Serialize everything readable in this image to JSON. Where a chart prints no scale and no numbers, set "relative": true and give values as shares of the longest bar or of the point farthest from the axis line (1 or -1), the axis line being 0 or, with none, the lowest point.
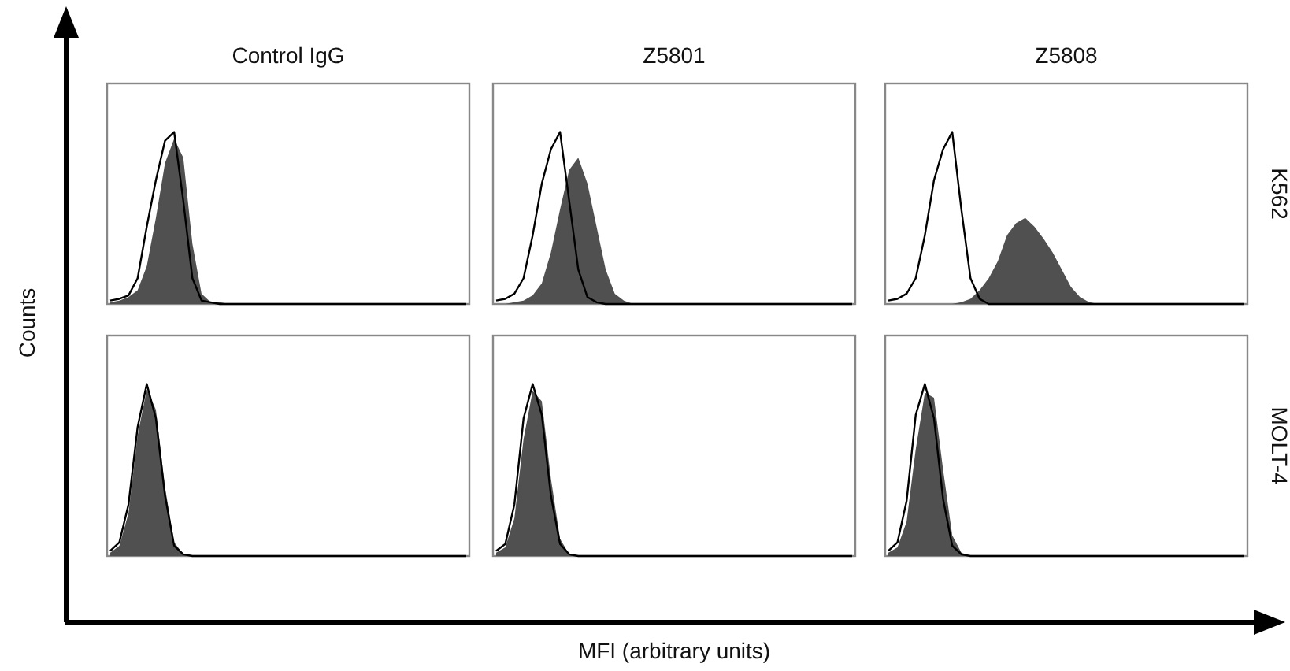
{
  "chart_data": [
    {
      "type": "area",
      "title": "Control IgG",
      "ylabel": "Counts",
      "relative": true,
      "tick_labels": false,
      "categories": [
        null,
        null,
        null,
        null,
        null,
        null,
        null,
        null,
        null,
        null,
        null,
        null,
        null,
        null,
        null,
        null,
        null,
        null,
        null,
        null,
        null,
        null,
        null,
        null,
        null,
        null,
        null,
        null,
        null,
        null,
        null,
        null,
        null,
        null,
        null,
        null,
        null,
        null,
        null,
        null
      ],
      "series": [
        {
          "type": "area",
          "color": "#505050",
          "values": [
            0.01,
            0.02,
            0.04,
            0.08,
            0.22,
            0.5,
            0.82,
            0.96,
            0.85,
            0.35,
            0.06,
            0.01,
            0.01,
            0,
            0,
            0,
            0,
            0,
            0,
            0,
            0,
            0,
            0,
            0,
            0,
            0,
            0,
            0,
            0,
            0,
            0,
            0,
            0,
            0,
            0,
            0,
            0,
            0,
            0,
            0
          ]
        },
        {
          "type": "line",
          "color": "#000000",
          "values": [
            0.02,
            0.03,
            0.05,
            0.15,
            0.45,
            0.72,
            0.95,
            1,
            0.6,
            0.15,
            0.02,
            0.01,
            0,
            0,
            0,
            0,
            0,
            0,
            0,
            0,
            0,
            0,
            0,
            0,
            0,
            0,
            0,
            0,
            0,
            0,
            0,
            0,
            0,
            0,
            0,
            0,
            0,
            0,
            0,
            0
          ]
        }
      ]
    },
    {
      "type": "area",
      "title": "Z5801",
      "relative": true,
      "tick_labels": false,
      "categories": [
        null,
        null,
        null,
        null,
        null,
        null,
        null,
        null,
        null,
        null,
        null,
        null,
        null,
        null,
        null,
        null,
        null,
        null,
        null,
        null,
        null,
        null,
        null,
        null,
        null,
        null,
        null,
        null,
        null,
        null,
        null,
        null,
        null,
        null,
        null,
        null,
        null,
        null,
        null,
        null
      ],
      "series": [
        {
          "type": "area",
          "color": "#505050",
          "values": [
            0,
            0,
            0.01,
            0.02,
            0.05,
            0.12,
            0.3,
            0.55,
            0.78,
            0.85,
            0.7,
            0.45,
            0.2,
            0.06,
            0.02,
            0,
            0,
            0,
            0,
            0,
            0,
            0,
            0,
            0,
            0,
            0,
            0,
            0,
            0,
            0,
            0,
            0,
            0,
            0,
            0,
            0,
            0,
            0,
            0,
            0
          ]
        },
        {
          "type": "line",
          "color": "#000000",
          "values": [
            0.02,
            0.03,
            0.06,
            0.15,
            0.4,
            0.7,
            0.9,
            1,
            0.6,
            0.2,
            0.04,
            0.01,
            0,
            0,
            0,
            0,
            0,
            0,
            0,
            0,
            0,
            0,
            0,
            0,
            0,
            0,
            0,
            0,
            0,
            0,
            0,
            0,
            0,
            0,
            0,
            0,
            0,
            0,
            0,
            0
          ]
        }
      ]
    },
    {
      "type": "area",
      "title": "Z5808",
      "y2label": "K562",
      "relative": true,
      "tick_labels": false,
      "categories": [
        null,
        null,
        null,
        null,
        null,
        null,
        null,
        null,
        null,
        null,
        null,
        null,
        null,
        null,
        null,
        null,
        null,
        null,
        null,
        null,
        null,
        null,
        null,
        null,
        null,
        null,
        null,
        null,
        null,
        null,
        null,
        null,
        null,
        null,
        null,
        null,
        null,
        null,
        null,
        null
      ],
      "series": [
        {
          "type": "area",
          "color": "#505050",
          "values": [
            0,
            0,
            0,
            0,
            0,
            0,
            0,
            0,
            0.01,
            0.03,
            0.08,
            0.15,
            0.25,
            0.4,
            0.47,
            0.5,
            0.45,
            0.38,
            0.3,
            0.2,
            0.1,
            0.04,
            0.01,
            0,
            0,
            0,
            0,
            0,
            0,
            0,
            0,
            0,
            0,
            0,
            0,
            0,
            0,
            0,
            0,
            0
          ]
        },
        {
          "type": "line",
          "color": "#000000",
          "values": [
            0.02,
            0.03,
            0.06,
            0.15,
            0.4,
            0.72,
            0.9,
            1,
            0.55,
            0.15,
            0.03,
            0,
            0,
            0,
            0,
            0,
            0,
            0,
            0,
            0,
            0,
            0,
            0,
            0,
            0,
            0,
            0,
            0,
            0,
            0,
            0,
            0,
            0,
            0,
            0,
            0,
            0,
            0,
            0,
            0
          ]
        }
      ]
    },
    {
      "type": "area",
      "relative": true,
      "tick_labels": false,
      "categories": [
        null,
        null,
        null,
        null,
        null,
        null,
        null,
        null,
        null,
        null,
        null,
        null,
        null,
        null,
        null,
        null,
        null,
        null,
        null,
        null,
        null,
        null,
        null,
        null,
        null,
        null,
        null,
        null,
        null,
        null,
        null,
        null,
        null,
        null,
        null,
        null,
        null,
        null,
        null,
        null
      ],
      "series": [
        {
          "type": "area",
          "color": "#505050",
          "values": [
            0.02,
            0.06,
            0.25,
            0.7,
            0.97,
            0.85,
            0.4,
            0.08,
            0.01,
            0,
            0,
            0,
            0,
            0,
            0,
            0,
            0,
            0,
            0,
            0,
            0,
            0,
            0,
            0,
            0,
            0,
            0,
            0,
            0,
            0,
            0,
            0,
            0,
            0,
            0,
            0,
            0,
            0,
            0,
            0
          ]
        },
        {
          "type": "line",
          "color": "#000000",
          "values": [
            0.03,
            0.08,
            0.3,
            0.75,
            1,
            0.8,
            0.35,
            0.06,
            0.01,
            0,
            0,
            0,
            0,
            0,
            0,
            0,
            0,
            0,
            0,
            0,
            0,
            0,
            0,
            0,
            0,
            0,
            0,
            0,
            0,
            0,
            0,
            0,
            0,
            0,
            0,
            0,
            0,
            0,
            0,
            0
          ]
        }
      ]
    },
    {
      "type": "area",
      "xlabel": "MFI (arbitrary units)",
      "relative": true,
      "tick_labels": false,
      "categories": [
        null,
        null,
        null,
        null,
        null,
        null,
        null,
        null,
        null,
        null,
        null,
        null,
        null,
        null,
        null,
        null,
        null,
        null,
        null,
        null,
        null,
        null,
        null,
        null,
        null,
        null,
        null,
        null,
        null,
        null,
        null,
        null,
        null,
        null,
        null,
        null,
        null,
        null,
        null,
        null
      ],
      "series": [
        {
          "type": "area",
          "color": "#505050",
          "values": [
            0.02,
            0.05,
            0.22,
            0.68,
            0.96,
            0.9,
            0.45,
            0.1,
            0.01,
            0,
            0,
            0,
            0,
            0,
            0,
            0,
            0,
            0,
            0,
            0,
            0,
            0,
            0,
            0,
            0,
            0,
            0,
            0,
            0,
            0,
            0,
            0,
            0,
            0,
            0,
            0,
            0,
            0,
            0,
            0
          ]
        },
        {
          "type": "line",
          "color": "#000000",
          "values": [
            0.03,
            0.07,
            0.3,
            0.8,
            1,
            0.82,
            0.35,
            0.07,
            0.01,
            0,
            0,
            0,
            0,
            0,
            0,
            0,
            0,
            0,
            0,
            0,
            0,
            0,
            0,
            0,
            0,
            0,
            0,
            0,
            0,
            0,
            0,
            0,
            0,
            0,
            0,
            0,
            0,
            0,
            0,
            0
          ]
        }
      ]
    },
    {
      "type": "area",
      "y2label": "MOLT-4",
      "relative": true,
      "tick_labels": false,
      "categories": [
        null,
        null,
        null,
        null,
        null,
        null,
        null,
        null,
        null,
        null,
        null,
        null,
        null,
        null,
        null,
        null,
        null,
        null,
        null,
        null,
        null,
        null,
        null,
        null,
        null,
        null,
        null,
        null,
        null,
        null,
        null,
        null,
        null,
        null,
        null,
        null,
        null,
        null,
        null,
        null
      ],
      "series": [
        {
          "type": "area",
          "color": "#505050",
          "values": [
            0.02,
            0.05,
            0.2,
            0.62,
            0.95,
            0.92,
            0.5,
            0.12,
            0.02,
            0,
            0,
            0,
            0,
            0,
            0,
            0,
            0,
            0,
            0,
            0,
            0,
            0,
            0,
            0,
            0,
            0,
            0,
            0,
            0,
            0,
            0,
            0,
            0,
            0,
            0,
            0,
            0,
            0,
            0,
            0
          ]
        },
        {
          "type": "line",
          "color": "#000000",
          "values": [
            0.03,
            0.08,
            0.32,
            0.82,
            1,
            0.8,
            0.33,
            0.06,
            0.01,
            0,
            0,
            0,
            0,
            0,
            0,
            0,
            0,
            0,
            0,
            0,
            0,
            0,
            0,
            0,
            0,
            0,
            0,
            0,
            0,
            0,
            0,
            0,
            0,
            0,
            0,
            0,
            0,
            0,
            0,
            0
          ]
        }
      ]
    }
  ]
}
